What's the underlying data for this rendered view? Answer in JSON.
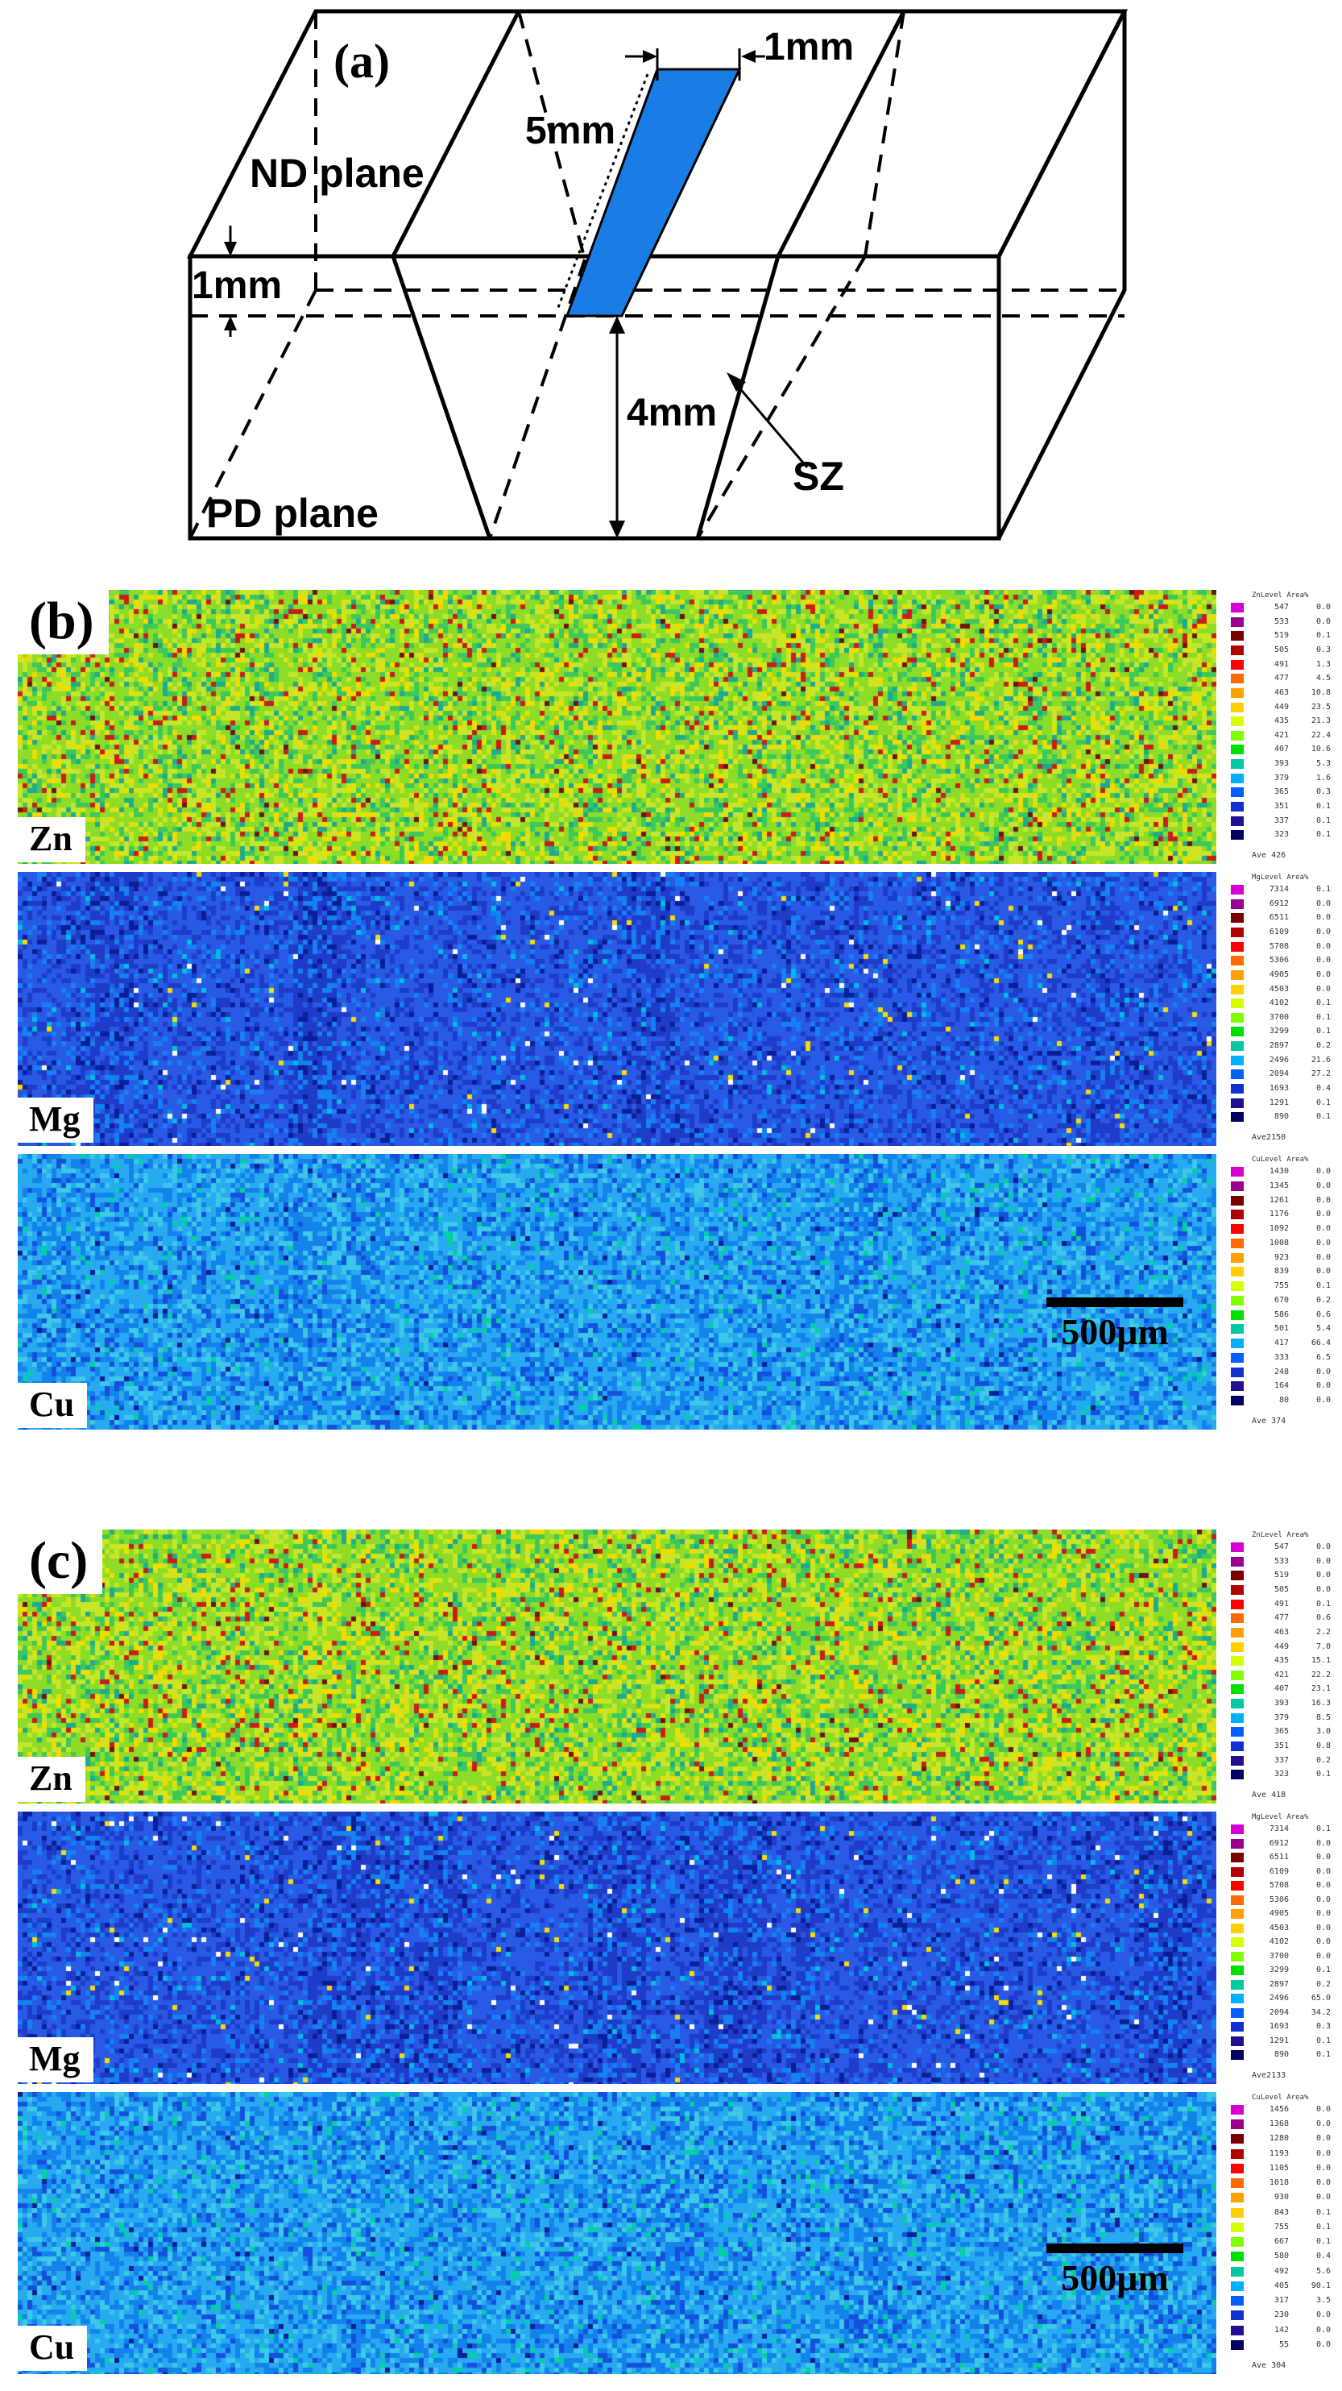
{
  "panel_a": {
    "label": "(a)",
    "nd_plane": "ND plane",
    "pd_plane": "PD plane",
    "dim_1mm_top": "1mm",
    "dim_5mm": "5mm",
    "dim_1mm_left": "1mm",
    "dim_4mm": "4mm",
    "sz": "SZ",
    "sample_color": "#1a7de6"
  },
  "panels": [
    {
      "id": "b",
      "label": "(b)",
      "scale_bar": "500μm",
      "maps": [
        {
          "element": "Zn",
          "palette": "zn",
          "legend_header": "ZnLevel Area%",
          "levels": [
            "547",
            "533",
            "519",
            "505",
            "491",
            "477",
            "463",
            "449",
            "435",
            "421",
            "407",
            "393",
            "379",
            "365",
            "351",
            "337",
            "323"
          ],
          "areas": [
            "0.0",
            "0.0",
            "0.1",
            "0.3",
            "1.3",
            "4.5",
            "10.8",
            "23.5",
            "21.3",
            "22.4",
            "10.6",
            "5.3",
            "1.6",
            "0.3",
            "0.1",
            "0.1",
            "0.1"
          ],
          "average": "Ave 426"
        },
        {
          "element": "Mg",
          "palette": "mg",
          "legend_header": "MgLevel Area%",
          "levels": [
            "7314",
            "6912",
            "6511",
            "6109",
            "5708",
            "5306",
            "4905",
            "4503",
            "4102",
            "3700",
            "3299",
            "2897",
            "2496",
            "2094",
            "1693",
            "1291",
            "890"
          ],
          "areas": [
            "0.1",
            "0.0",
            "0.0",
            "0.0",
            "0.0",
            "0.0",
            "0.0",
            "0.0",
            "0.1",
            "0.1",
            "0.1",
            "0.2",
            "21.6",
            "27.2",
            "0.4",
            "0.1",
            "0.1"
          ],
          "average": "Ave2150"
        },
        {
          "element": "Cu",
          "palette": "cu",
          "legend_header": "CuLevel Area%",
          "levels": [
            "1430",
            "1345",
            "1261",
            "1176",
            "1092",
            "1008",
            "923",
            "839",
            "755",
            "670",
            "586",
            "501",
            "417",
            "333",
            "248",
            "164",
            "80"
          ],
          "areas": [
            "0.0",
            "0.0",
            "0.0",
            "0.0",
            "0.0",
            "0.0",
            "0.0",
            "0.0",
            "0.1",
            "0.2",
            "0.6",
            "5.4",
            "66.4",
            "6.5",
            "0.0",
            "0.0",
            "0.0"
          ],
          "average": "Ave 374"
        }
      ]
    },
    {
      "id": "c",
      "label": "(c)",
      "scale_bar": "500μm",
      "maps": [
        {
          "element": "Zn",
          "palette": "zn",
          "legend_header": "ZnLevel Area%",
          "levels": [
            "547",
            "533",
            "519",
            "505",
            "491",
            "477",
            "463",
            "449",
            "435",
            "421",
            "407",
            "393",
            "379",
            "365",
            "351",
            "337",
            "323"
          ],
          "areas": [
            "0.0",
            "0.0",
            "0.0",
            "0.0",
            "0.1",
            "0.6",
            "2.2",
            "7.0",
            "15.1",
            "22.2",
            "23.1",
            "16.3",
            "8.5",
            "3.0",
            "0.8",
            "0.2",
            "0.1"
          ],
          "average": "Ave 418"
        },
        {
          "element": "Mg",
          "palette": "mg",
          "legend_header": "MgLevel Area%",
          "levels": [
            "7314",
            "6912",
            "6511",
            "6109",
            "5708",
            "5306",
            "4905",
            "4503",
            "4102",
            "3700",
            "3299",
            "2897",
            "2496",
            "2094",
            "1693",
            "1291",
            "890"
          ],
          "areas": [
            "0.1",
            "0.0",
            "0.0",
            "0.0",
            "0.0",
            "0.0",
            "0.0",
            "0.0",
            "0.0",
            "0.0",
            "0.1",
            "0.2",
            "65.0",
            "34.2",
            "0.3",
            "0.1",
            "0.1"
          ],
          "average": "Ave2133"
        },
        {
          "element": "Cu",
          "palette": "cu",
          "legend_header": "CuLevel Area%",
          "levels": [
            "1456",
            "1368",
            "1280",
            "1193",
            "1105",
            "1018",
            "930",
            "843",
            "755",
            "667",
            "580",
            "492",
            "405",
            "317",
            "230",
            "142",
            "55"
          ],
          "areas": [
            "0.0",
            "0.0",
            "0.0",
            "0.0",
            "0.0",
            "0.0",
            "0.0",
            "0.1",
            "0.1",
            "0.1",
            "0.4",
            "5.6",
            "90.1",
            "3.5",
            "0.0",
            "0.0",
            "0.0"
          ],
          "average": "Ave 304"
        }
      ]
    }
  ],
  "legend_colors": [
    "#d400d4",
    "#9a0090",
    "#7a0000",
    "#b00000",
    "#ff0000",
    "#ff6a00",
    "#ffa000",
    "#ffd000",
    "#d8ff00",
    "#80ff00",
    "#00e000",
    "#00c8a0",
    "#00b0ff",
    "#0060ff",
    "#1030d0",
    "#201090",
    "#000060"
  ]
}
